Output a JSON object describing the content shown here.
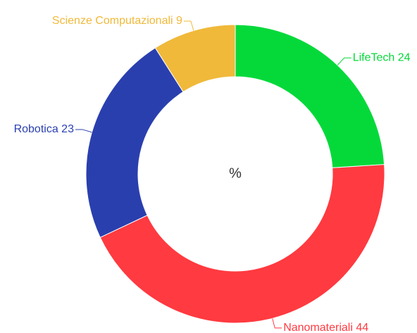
{
  "chart_data": {
    "type": "donut",
    "center_label": "%",
    "categories": [
      "LifeTech",
      "Nanomateriali",
      "Robotica",
      "Scienze Computazionali"
    ],
    "values": [
      24,
      44,
      23,
      9
    ],
    "colors": [
      "#05d93a",
      "#ff3a40",
      "#2a3fae",
      "#f0b93a"
    ]
  }
}
